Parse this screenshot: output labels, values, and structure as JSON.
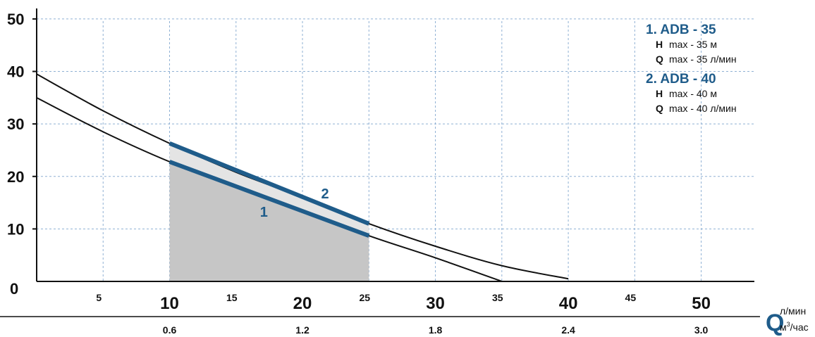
{
  "chart_data": {
    "type": "line",
    "title": "",
    "x_unit_primary": "л/мин",
    "x_unit_secondary_base": "м",
    "x_unit_secondary_sup": "3",
    "x_unit_secondary_rest": "/час",
    "x_label_letter": "Q",
    "xlim": [
      0,
      54
    ],
    "ylim": [
      0,
      52
    ],
    "y_ticks": [
      0,
      10,
      20,
      30,
      40,
      50
    ],
    "x_ticks_major": [
      10,
      20,
      30,
      40,
      50
    ],
    "x_ticks_minor": [
      5,
      15,
      25,
      35,
      45
    ],
    "x2_ticks": [
      {
        "q": 10,
        "label": "0.6"
      },
      {
        "q": 20,
        "label": "1.2"
      },
      {
        "q": 30,
        "label": "1.8"
      },
      {
        "q": 40,
        "label": "2.4"
      },
      {
        "q": 50,
        "label": "3.0"
      }
    ],
    "grid": true,
    "legend_position": "top-right",
    "operating_range": [
      10,
      25
    ],
    "series": [
      {
        "label": "1",
        "points": [
          [
            0,
            35
          ],
          [
            5,
            28.5
          ],
          [
            10,
            22.8
          ],
          [
            15,
            18
          ],
          [
            20,
            13.5
          ],
          [
            25,
            8.7
          ],
          [
            30,
            4.5
          ],
          [
            35,
            0
          ]
        ],
        "highlight": [
          [
            10,
            22.8
          ],
          [
            25,
            8.7
          ]
        ]
      },
      {
        "label": "2",
        "points": [
          [
            0,
            39.5
          ],
          [
            5,
            32.5
          ],
          [
            10,
            26.3
          ],
          [
            15,
            20.8
          ],
          [
            20,
            16
          ],
          [
            25,
            11
          ],
          [
            30,
            6.7
          ],
          [
            35,
            3
          ],
          [
            40,
            0.5
          ]
        ],
        "highlight": [
          [
            10,
            26.3
          ],
          [
            25,
            11
          ]
        ]
      }
    ],
    "legend": [
      {
        "title": "1. ADB - 35",
        "lines": [
          {
            "key": "H",
            "text": "max - 35 м"
          },
          {
            "key": "Q",
            "text": "max - 35 л/мин"
          }
        ]
      },
      {
        "title": "2. ADB - 40",
        "lines": [
          {
            "key": "H",
            "text": "max - 40 м"
          },
          {
            "key": "Q",
            "text": "max - 40 л/мин"
          }
        ]
      }
    ],
    "colors": {
      "curve": "#111111",
      "highlight": "#1f5c8a",
      "area": "#c6c6c6",
      "band": "#e4e4e4",
      "grid": "#8fb0d4"
    }
  }
}
